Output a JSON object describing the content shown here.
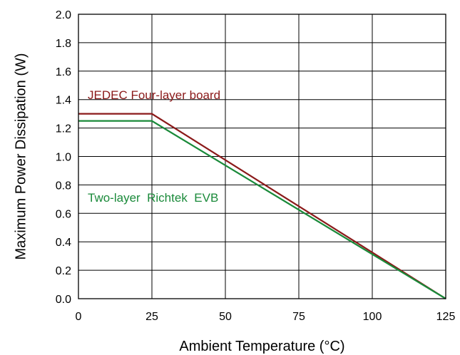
{
  "chart_data": {
    "type": "line",
    "xlabel": "Ambient Temperature (°C)",
    "ylabel": "Maximum Power Dissipation (W)",
    "xlim": [
      0,
      125
    ],
    "ylim": [
      0,
      2.0
    ],
    "xticks": [
      0,
      25,
      50,
      75,
      100,
      125
    ],
    "yticks": [
      0.0,
      0.2,
      0.4,
      0.6,
      0.8,
      1.0,
      1.2,
      1.4,
      1.6,
      1.8,
      2.0
    ],
    "xtick_labels": [
      "0",
      "25",
      "50",
      "75",
      "100",
      "125"
    ],
    "ytick_labels": [
      "0.0",
      "0.2",
      "0.4",
      "0.6",
      "0.8",
      "1.0",
      "1.2",
      "1.4",
      "1.6",
      "1.8",
      "2.0"
    ],
    "grid": true,
    "series": [
      {
        "name": "JEDEC Four-layer board",
        "color": "#8b1a1a",
        "x": [
          0,
          25,
          125
        ],
        "y": [
          1.3,
          1.3,
          0.0
        ]
      },
      {
        "name": "Two-layer  Richtek  EVB",
        "color": "#1a8a3a",
        "x": [
          0,
          25,
          125
        ],
        "y": [
          1.25,
          1.25,
          0.0
        ]
      }
    ]
  }
}
